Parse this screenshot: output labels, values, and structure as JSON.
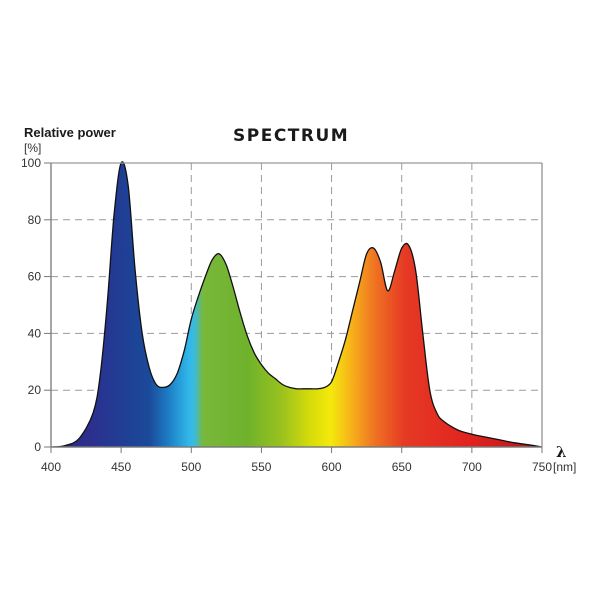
{
  "chart_data": {
    "type": "area",
    "title": "SPECTRUM",
    "ylabel": "Relative power",
    "yunit": "[%]",
    "xlabel": "λ",
    "xunit": "[nm]",
    "xlim": [
      400,
      750
    ],
    "ylim": [
      0,
      100
    ],
    "x_ticks": [
      400,
      450,
      500,
      550,
      600,
      650,
      700,
      750
    ],
    "y_ticks": [
      0,
      20,
      40,
      60,
      80,
      100
    ],
    "grid": true,
    "legend": null,
    "series": [
      {
        "name": "Relative power",
        "x": [
          400,
          410,
          420,
          430,
          435,
          440,
          445,
          450,
          455,
          460,
          465,
          470,
          475,
          480,
          485,
          490,
          495,
          500,
          505,
          510,
          515,
          520,
          525,
          530,
          535,
          540,
          545,
          550,
          555,
          560,
          565,
          570,
          575,
          580,
          585,
          590,
          595,
          600,
          605,
          610,
          615,
          620,
          625,
          630,
          635,
          640,
          645,
          650,
          655,
          660,
          665,
          670,
          675,
          680,
          690,
          700,
          710,
          720,
          730,
          740,
          750
        ],
        "y": [
          0,
          0.5,
          3,
          12,
          25,
          50,
          82,
          100,
          92,
          62,
          40,
          28,
          22,
          21,
          22,
          26,
          34,
          45,
          53,
          60,
          66,
          68,
          64,
          56,
          47,
          39,
          33,
          29,
          26,
          24,
          22,
          21,
          20.5,
          20.5,
          20.5,
          20.5,
          21,
          23,
          30,
          38,
          48,
          58,
          68,
          70,
          65,
          55,
          62,
          70,
          71,
          62,
          40,
          20,
          12,
          9,
          6,
          4.5,
          3.5,
          2.5,
          1.5,
          0.8,
          0
        ]
      }
    ],
    "peaks": [
      {
        "wavelength": 450,
        "value": 100
      },
      {
        "wavelength": 522,
        "value": 68
      },
      {
        "wavelength": 634,
        "value": 70
      },
      {
        "wavelength": 658,
        "value": 71
      }
    ]
  }
}
